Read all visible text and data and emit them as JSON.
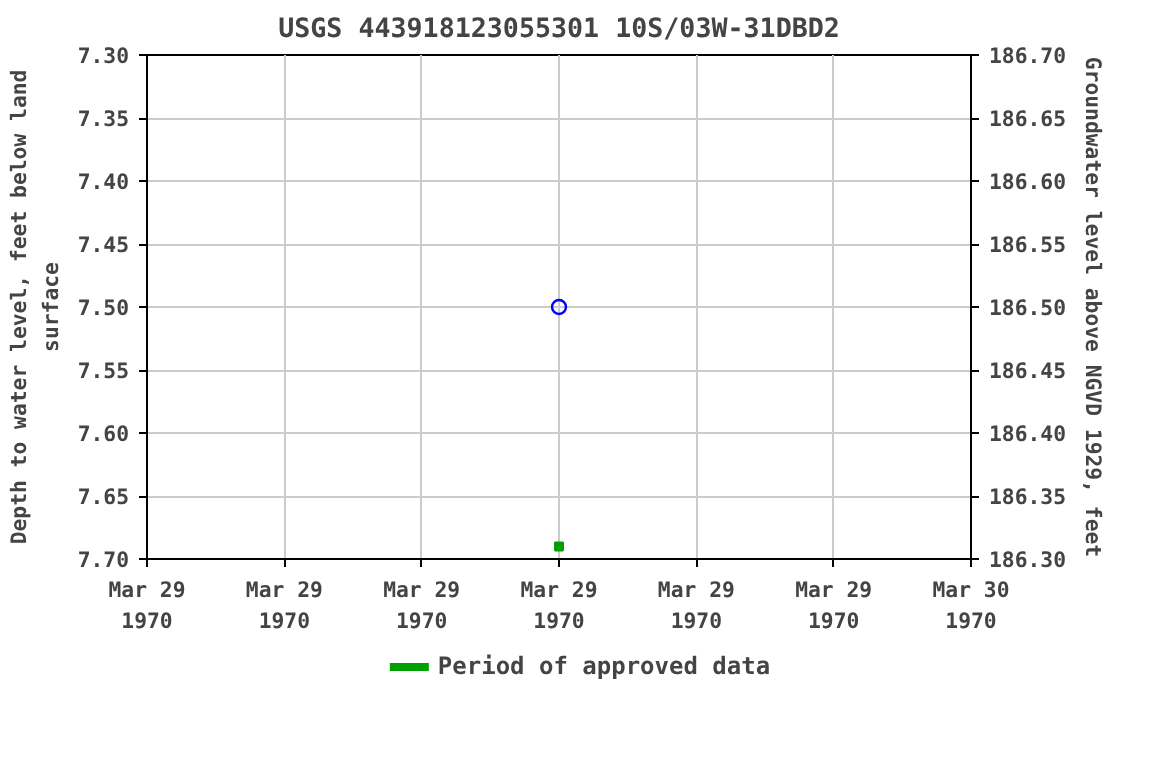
{
  "chart_data": {
    "type": "scatter",
    "title": "USGS 443918123055301 10S/03W-31DBD2",
    "xlabel": null,
    "ylabel": "Depth to water level, feet below land\nsurface",
    "y2label": "Groundwater level above NGVD 1929, feet",
    "x": [
      "1970-03-29T12:00"
    ],
    "xlim": [
      "1970-03-29T00:00",
      "1970-03-30T00:00"
    ],
    "xticks": [
      {
        "value": "1970-03-29T00:00",
        "label": "Mar 29\n1970"
      },
      {
        "value": "1970-03-29T04:00",
        "label": "Mar 29\n1970"
      },
      {
        "value": "1970-03-29T08:00",
        "label": "Mar 29\n1970"
      },
      {
        "value": "1970-03-29T12:00",
        "label": "Mar 29\n1970"
      },
      {
        "value": "1970-03-29T16:00",
        "label": "Mar 29\n1970"
      },
      {
        "value": "1970-03-29T20:00",
        "label": "Mar 29\n1970"
      },
      {
        "value": "1970-03-30T00:00",
        "label": "Mar 30\n1970"
      }
    ],
    "ylim": [
      7.7,
      7.3
    ],
    "yticks": [
      {
        "value": 7.3,
        "label": "7.30"
      },
      {
        "value": 7.35,
        "label": "7.35"
      },
      {
        "value": 7.4,
        "label": "7.40"
      },
      {
        "value": 7.45,
        "label": "7.45"
      },
      {
        "value": 7.5,
        "label": "7.50"
      },
      {
        "value": 7.55,
        "label": "7.55"
      },
      {
        "value": 7.6,
        "label": "7.60"
      },
      {
        "value": 7.65,
        "label": "7.65"
      },
      {
        "value": 7.7,
        "label": "7.70"
      }
    ],
    "y2lim": [
      186.3,
      186.7
    ],
    "y2ticks": [
      {
        "value": 186.3,
        "label": "186.30"
      },
      {
        "value": 186.35,
        "label": "186.35"
      },
      {
        "value": 186.4,
        "label": "186.40"
      },
      {
        "value": 186.45,
        "label": "186.45"
      },
      {
        "value": 186.5,
        "label": "186.50"
      },
      {
        "value": 186.55,
        "label": "186.55"
      },
      {
        "value": 186.6,
        "label": "186.60"
      },
      {
        "value": 186.65,
        "label": "186.65"
      },
      {
        "value": 186.7,
        "label": "186.70"
      }
    ],
    "series": [
      {
        "color": "#0000ff",
        "marker": "circle",
        "values": [
          7.5
        ]
      },
      {
        "name": "Period of approved data",
        "color": "#00a000",
        "marker": "square",
        "values": [
          7.69
        ]
      }
    ],
    "grid": true,
    "legend": "bottom"
  }
}
